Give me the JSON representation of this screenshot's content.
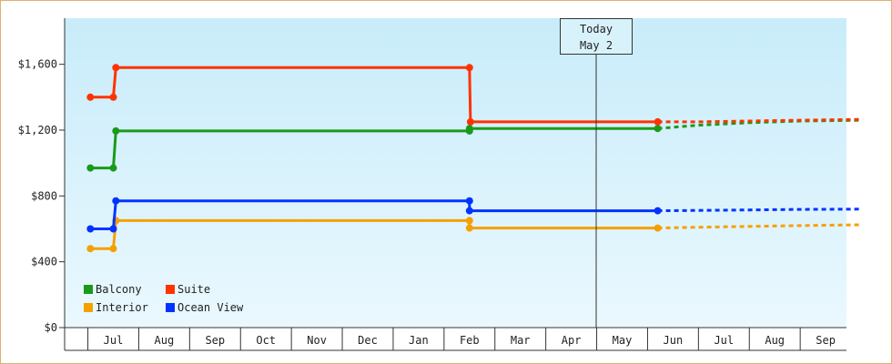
{
  "chart_data": {
    "type": "line",
    "title": "",
    "xlabel": "",
    "ylabel": "",
    "x_ticks": [
      "Jul",
      "Aug",
      "Sep",
      "Oct",
      "Nov",
      "Dec",
      "Jan",
      "Feb",
      "Mar",
      "Apr",
      "May",
      "Jun",
      "Jul",
      "Aug",
      "Sep"
    ],
    "y_ticks": [
      "$0",
      "$400",
      "$800",
      "$1,200",
      "$1,600"
    ],
    "ylim": [
      0,
      1880
    ],
    "grid": false,
    "legend_position": "bottom-left",
    "today_marker": {
      "line1": "Today",
      "line2": "May 2",
      "x": 10.7
    },
    "colors": {
      "Balcony": "#1a9a1a",
      "Suite": "#ff3300",
      "Interior": "#f5a000",
      "Ocean View": "#0033ff"
    },
    "series": [
      {
        "name": "Balcony",
        "points": [
          [
            -0.45,
            970
          ],
          [
            0.0,
            970
          ],
          [
            0.05,
            1195
          ],
          [
            7.0,
            1195
          ],
          [
            7.0,
            1210
          ],
          [
            10.7,
            1210
          ]
        ],
        "forecast": [
          [
            10.7,
            1210
          ],
          [
            11.5,
            1230
          ],
          [
            12.5,
            1245
          ],
          [
            13.5,
            1255
          ],
          [
            14.7,
            1260
          ]
        ]
      },
      {
        "name": "Suite",
        "points": [
          [
            -0.45,
            1400
          ],
          [
            0.0,
            1400
          ],
          [
            0.05,
            1580
          ],
          [
            7.0,
            1580
          ],
          [
            7.02,
            1250
          ],
          [
            10.7,
            1250
          ]
        ],
        "forecast": [
          [
            10.7,
            1250
          ],
          [
            11.5,
            1250
          ],
          [
            12.5,
            1255
          ],
          [
            13.5,
            1260
          ],
          [
            14.7,
            1265
          ]
        ]
      },
      {
        "name": "Interior",
        "points": [
          [
            -0.45,
            480
          ],
          [
            0.0,
            480
          ],
          [
            0.05,
            650
          ],
          [
            7.0,
            650
          ],
          [
            7.0,
            605
          ],
          [
            10.7,
            605
          ]
        ],
        "forecast": [
          [
            10.7,
            605
          ],
          [
            11.5,
            610
          ],
          [
            12.5,
            615
          ],
          [
            13.5,
            620
          ],
          [
            14.7,
            625
          ]
        ]
      },
      {
        "name": "Ocean View",
        "points": [
          [
            -0.45,
            600
          ],
          [
            0.0,
            600
          ],
          [
            0.05,
            770
          ],
          [
            7.0,
            770
          ],
          [
            7.0,
            710
          ],
          [
            10.7,
            710
          ]
        ],
        "forecast": [
          [
            10.7,
            710
          ],
          [
            11.5,
            712
          ],
          [
            12.5,
            715
          ],
          [
            13.5,
            718
          ],
          [
            14.7,
            720
          ]
        ]
      }
    ]
  }
}
